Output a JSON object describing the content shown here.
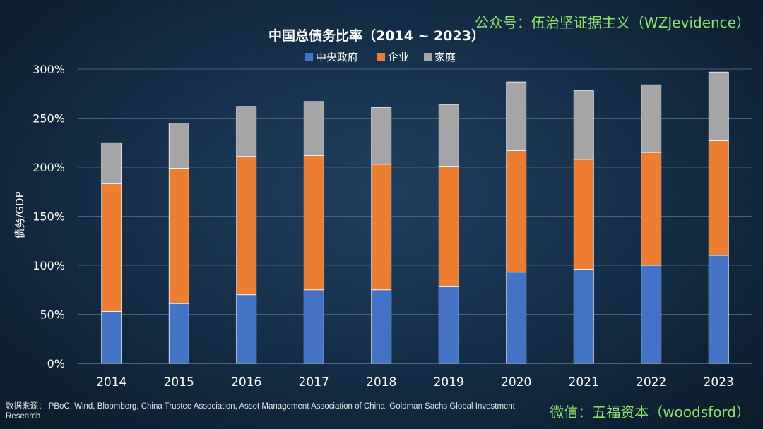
{
  "watermark_top": "公众号：伍治坚证据主义（WZJevidence）",
  "watermark_bottom": "微信：五福资本（woodsford）",
  "source_note": "数据来源： PBoC, Wind, Bloomberg, China Trustee Association, Asset Management Association of China, Goldman Sachs Global Investment Research",
  "chart_data": {
    "type": "bar",
    "stacked": true,
    "title": "中国总债务比率（2014 ~ 2023）",
    "xlabel": "",
    "ylabel": "债务/GDP",
    "ylim": [
      0,
      300
    ],
    "yticks": [
      0,
      50,
      100,
      150,
      200,
      250,
      300
    ],
    "ytick_labels": [
      "0%",
      "50%",
      "100%",
      "150%",
      "200%",
      "250%",
      "300%"
    ],
    "grid": true,
    "legend_position": "top-center",
    "categories": [
      "2014",
      "2015",
      "2016",
      "2017",
      "2018",
      "2019",
      "2020",
      "2021",
      "2022",
      "2023"
    ],
    "series": [
      {
        "name": "中央政府",
        "color": "#4472c4",
        "values": [
          53,
          61,
          70,
          75,
          75,
          78,
          93,
          96,
          100,
          110
        ]
      },
      {
        "name": "企业",
        "color": "#ed7d31",
        "values": [
          130,
          138,
          141,
          137,
          128,
          123,
          124,
          112,
          115,
          117
        ]
      },
      {
        "name": "家庭",
        "color": "#a5a5a5",
        "values": [
          42,
          46,
          51,
          55,
          58,
          63,
          70,
          70,
          69,
          70
        ]
      }
    ]
  }
}
